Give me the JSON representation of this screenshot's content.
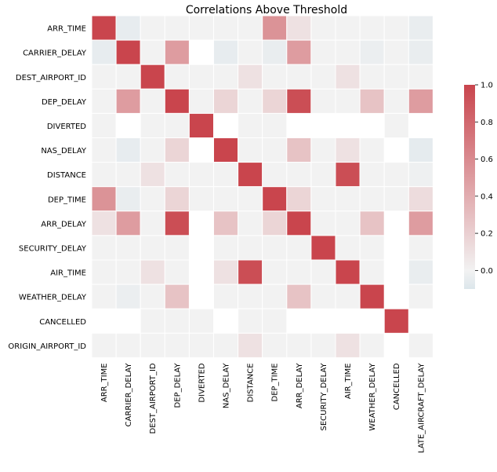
{
  "chart_data": {
    "type": "heatmap",
    "title": "Correlations Above Threshold",
    "rows": [
      "ARR_TIME",
      "CARRIER_DELAY",
      "DEST_AIRPORT_ID",
      "DEP_DELAY",
      "DIVERTED",
      "NAS_DELAY",
      "DISTANCE",
      "DEP_TIME",
      "ARR_DELAY",
      "SECURITY_DELAY",
      "AIR_TIME",
      "WEATHER_DELAY",
      "CANCELLED",
      "ORIGIN_AIRPORT_ID"
    ],
    "columns": [
      "ARR_TIME",
      "CARRIER_DELAY",
      "DEST_AIRPORT_ID",
      "DEP_DELAY",
      "DIVERTED",
      "NAS_DELAY",
      "DISTANCE",
      "DEP_TIME",
      "ARR_DELAY",
      "SECURITY_DELAY",
      "AIR_TIME",
      "WEATHER_DELAY",
      "CANCELLED",
      "LATE_AIRCRAFT_DELAY"
    ],
    "values": [
      [
        1.0,
        -0.05,
        0.0,
        0.0,
        0.0,
        0.0,
        0.0,
        0.55,
        0.1,
        0.0,
        0.0,
        0.0,
        0.0,
        -0.04
      ],
      [
        -0.05,
        1.0,
        0.0,
        0.5,
        null,
        -0.05,
        0.0,
        -0.04,
        0.5,
        0.0,
        0.0,
        -0.03,
        0.0,
        -0.04
      ],
      [
        0.0,
        0.0,
        1.0,
        0.0,
        0.0,
        0.0,
        0.1,
        0.0,
        0.0,
        0.0,
        0.1,
        0.0,
        0.0,
        0.0
      ],
      [
        0.0,
        0.5,
        0.0,
        1.0,
        0.0,
        0.17,
        0.0,
        0.17,
        0.95,
        0.0,
        0.0,
        0.27,
        0.0,
        0.5
      ],
      [
        0.0,
        null,
        0.0,
        0.0,
        1.0,
        null,
        0.0,
        0.0,
        null,
        null,
        null,
        null,
        0.0,
        null
      ],
      [
        0.0,
        -0.05,
        0.0,
        0.17,
        null,
        1.0,
        0.0,
        0.0,
        0.27,
        0.0,
        0.1,
        0.0,
        null,
        -0.06
      ],
      [
        0.0,
        0.0,
        0.1,
        0.0,
        0.0,
        0.0,
        1.0,
        0.0,
        0.0,
        0.0,
        0.95,
        0.0,
        0.0,
        -0.02
      ],
      [
        0.55,
        -0.04,
        0.0,
        0.17,
        0.0,
        0.0,
        0.0,
        1.0,
        0.17,
        0.0,
        0.0,
        0.0,
        0.0,
        0.13
      ],
      [
        0.1,
        0.5,
        0.0,
        0.95,
        null,
        0.27,
        0.0,
        0.17,
        1.0,
        0.0,
        0.0,
        0.27,
        null,
        0.5
      ],
      [
        0.0,
        0.0,
        0.0,
        0.0,
        null,
        0.0,
        0.0,
        0.0,
        0.0,
        1.0,
        0.0,
        0.0,
        null,
        0.0
      ],
      [
        0.0,
        0.0,
        0.1,
        0.0,
        null,
        0.1,
        0.95,
        0.0,
        0.0,
        0.0,
        1.0,
        0.0,
        null,
        -0.04
      ],
      [
        0.0,
        -0.03,
        0.0,
        0.27,
        null,
        0.0,
        0.0,
        0.0,
        0.27,
        0.0,
        0.0,
        1.0,
        null,
        0.0
      ],
      [
        null,
        null,
        0.0,
        0.0,
        0.0,
        null,
        0.0,
        0.0,
        null,
        null,
        null,
        null,
        1.0,
        null
      ],
      [
        0.0,
        0.0,
        0.0,
        0.0,
        0.0,
        0.0,
        0.1,
        0.0,
        0.0,
        0.0,
        0.1,
        0.0,
        null,
        0.0
      ]
    ],
    "colorbar": {
      "ticks": [
        "1.0",
        "0.8",
        "0.6",
        "0.4",
        "0.2",
        "0.0"
      ],
      "tick_values": [
        1.0,
        0.8,
        0.6,
        0.4,
        0.2,
        0.0
      ],
      "range": [
        -0.1,
        1.0
      ]
    },
    "colors": {
      "low": "#dce6eb",
      "mid": "#f2f2f2",
      "high": "#c9454d"
    }
  }
}
